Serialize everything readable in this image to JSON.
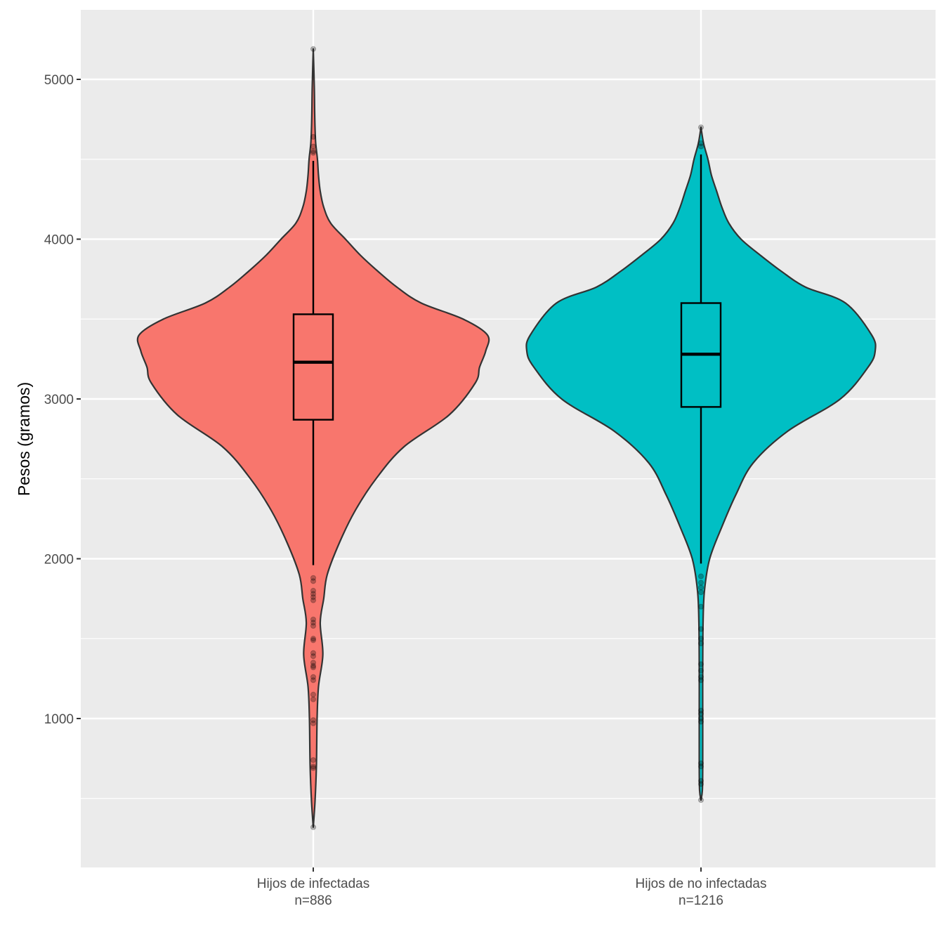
{
  "chart_data": {
    "type": "violin",
    "title": "",
    "xlabel": "",
    "ylabel": "Pesos (gramos)",
    "ylim": [
      100,
      5430
    ],
    "yticks": [
      1000,
      2000,
      3000,
      4000,
      5000
    ],
    "yticks_minor": [
      500,
      1500,
      2500,
      3500,
      4500
    ],
    "grid": true,
    "legend": "none",
    "series": [
      {
        "category": "Hijos de infectadas",
        "sublabel": "n=886",
        "color": "#F8766D",
        "box": {
          "whisker_low": 1960,
          "q1": 2870,
          "median": 3230,
          "q3": 3530,
          "whisker_high": 4490
        },
        "density": [
          [
            320,
            0.0
          ],
          [
            480,
            0.01
          ],
          [
            700,
            0.018
          ],
          [
            1000,
            0.022
          ],
          [
            1200,
            0.03
          ],
          [
            1400,
            0.055
          ],
          [
            1600,
            0.04
          ],
          [
            1750,
            0.06
          ],
          [
            1900,
            0.08
          ],
          [
            2100,
            0.15
          ],
          [
            2300,
            0.24
          ],
          [
            2500,
            0.36
          ],
          [
            2700,
            0.52
          ],
          [
            2900,
            0.78
          ],
          [
            3100,
            0.93
          ],
          [
            3200,
            0.955
          ],
          [
            3300,
            0.99
          ],
          [
            3400,
            1.0
          ],
          [
            3500,
            0.86
          ],
          [
            3600,
            0.62
          ],
          [
            3700,
            0.48
          ],
          [
            3800,
            0.37
          ],
          [
            3900,
            0.27
          ],
          [
            4000,
            0.185
          ],
          [
            4100,
            0.1
          ],
          [
            4200,
            0.06
          ],
          [
            4300,
            0.04
          ],
          [
            4400,
            0.03
          ],
          [
            4500,
            0.024
          ],
          [
            4600,
            0.014
          ],
          [
            4700,
            0.01
          ],
          [
            4800,
            0.008
          ],
          [
            4950,
            0.006
          ],
          [
            5190,
            0.0
          ]
        ],
        "outliers": [
          5190,
          4640,
          4580,
          4550,
          4540,
          1880,
          1860,
          1800,
          1780,
          1760,
          1740,
          1620,
          1600,
          1580,
          1500,
          1490,
          1410,
          1390,
          1350,
          1330,
          1320,
          1260,
          1240,
          1150,
          1120,
          990,
          970,
          740,
          700,
          690,
          320
        ]
      },
      {
        "category": "Hijos de no infectadas",
        "sublabel": "n=1216",
        "color": "#00BFC4",
        "box": {
          "whisker_low": 1970,
          "q1": 2950,
          "median": 3280,
          "q3": 3600,
          "whisker_high": 4530
        },
        "density": [
          [
            490,
            0.0
          ],
          [
            550,
            0.008
          ],
          [
            700,
            0.01
          ],
          [
            1000,
            0.01
          ],
          [
            1300,
            0.01
          ],
          [
            1600,
            0.012
          ],
          [
            1800,
            0.02
          ],
          [
            2000,
            0.05
          ],
          [
            2200,
            0.12
          ],
          [
            2400,
            0.2
          ],
          [
            2600,
            0.3
          ],
          [
            2800,
            0.5
          ],
          [
            3000,
            0.8
          ],
          [
            3200,
            0.96
          ],
          [
            3300,
            1.0
          ],
          [
            3400,
            0.98
          ],
          [
            3600,
            0.83
          ],
          [
            3700,
            0.6
          ],
          [
            3800,
            0.46
          ],
          [
            3900,
            0.34
          ],
          [
            4000,
            0.23
          ],
          [
            4100,
            0.16
          ],
          [
            4200,
            0.12
          ],
          [
            4300,
            0.09
          ],
          [
            4400,
            0.06
          ],
          [
            4500,
            0.04
          ],
          [
            4600,
            0.015
          ],
          [
            4700,
            0.0
          ]
        ],
        "outliers": [
          4700,
          4600,
          4580,
          1890,
          1850,
          1820,
          1790,
          1700,
          1560,
          1500,
          1470,
          1340,
          1300,
          1260,
          1240,
          1050,
          1030,
          1000,
          980,
          720,
          700,
          610,
          590,
          490
        ]
      }
    ]
  }
}
